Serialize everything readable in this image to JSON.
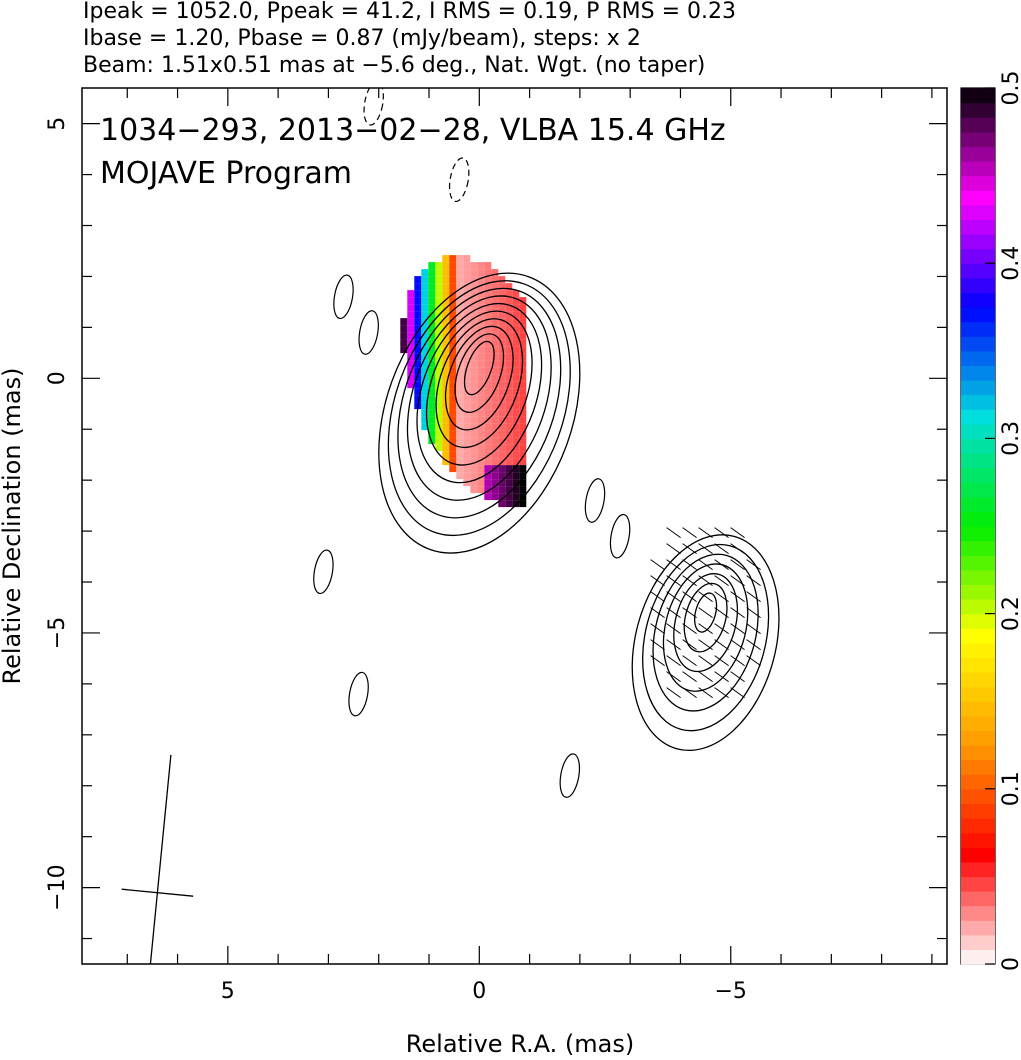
{
  "header": {
    "line1": "Ipeak = 1052.0, Ppeak = 41.2, I RMS = 0.19, P RMS = 0.23",
    "line2": "Ibase = 1.20, Pbase = 0.87 (mJy/beam), steps: x 2",
    "line3": "Beam: 1.51x0.51 mas at −5.6 deg., Nat. Wgt. (no taper)"
  },
  "plot_labels": {
    "source_line": "1034−293, 2013−02−28, VLBA 15.4 GHz",
    "program_line": "MOJAVE Program"
  },
  "chart_data": {
    "type": "heatmap",
    "title": "",
    "xlabel": "Relative R.A. (mas)",
    "ylabel": "Relative Declination (mas)",
    "xlim": [
      7.9,
      -9.3
    ],
    "ylim": [
      -11.5,
      5.7
    ],
    "x_ticks": [
      {
        "value": 5,
        "label": "5"
      },
      {
        "value": 0,
        "label": "0"
      },
      {
        "value": -5,
        "label": "−5"
      }
    ],
    "y_ticks": [
      {
        "value": 5,
        "label": "5"
      },
      {
        "value": 0,
        "label": "0"
      },
      {
        "value": -5,
        "label": "−5"
      },
      {
        "value": -10,
        "label": "−10"
      }
    ],
    "grid": false,
    "contours": {
      "base_mJy_per_beam": 1.2,
      "step_factor": 2,
      "components": [
        {
          "name": "core",
          "x": 0.0,
          "y": 0.2,
          "levels": 10
        },
        {
          "name": "jet",
          "x": -4.5,
          "y": -4.6,
          "levels": 7
        }
      ]
    },
    "fractional_polarization_colorbar": {
      "min": 0,
      "max": 0.5,
      "ticks": [
        {
          "value": 0,
          "label": "0"
        },
        {
          "value": 0.1,
          "label": "0.1"
        },
        {
          "value": 0.2,
          "label": "0.2"
        },
        {
          "value": 0.3,
          "label": "0.3"
        },
        {
          "value": 0.4,
          "label": "0.4"
        },
        {
          "value": 0.5,
          "label": "0.5"
        }
      ],
      "colors": [
        "#ffffff",
        "#ff0000",
        "#ff9900",
        "#ffff00",
        "#00ee00",
        "#00dddd",
        "#0000ff",
        "#ff00ff",
        "#000000"
      ]
    },
    "beam": {
      "major_mas": 1.51,
      "minor_mas": 0.51,
      "pa_deg": -5.6,
      "x": 6.4,
      "y": -10.1
    }
  }
}
